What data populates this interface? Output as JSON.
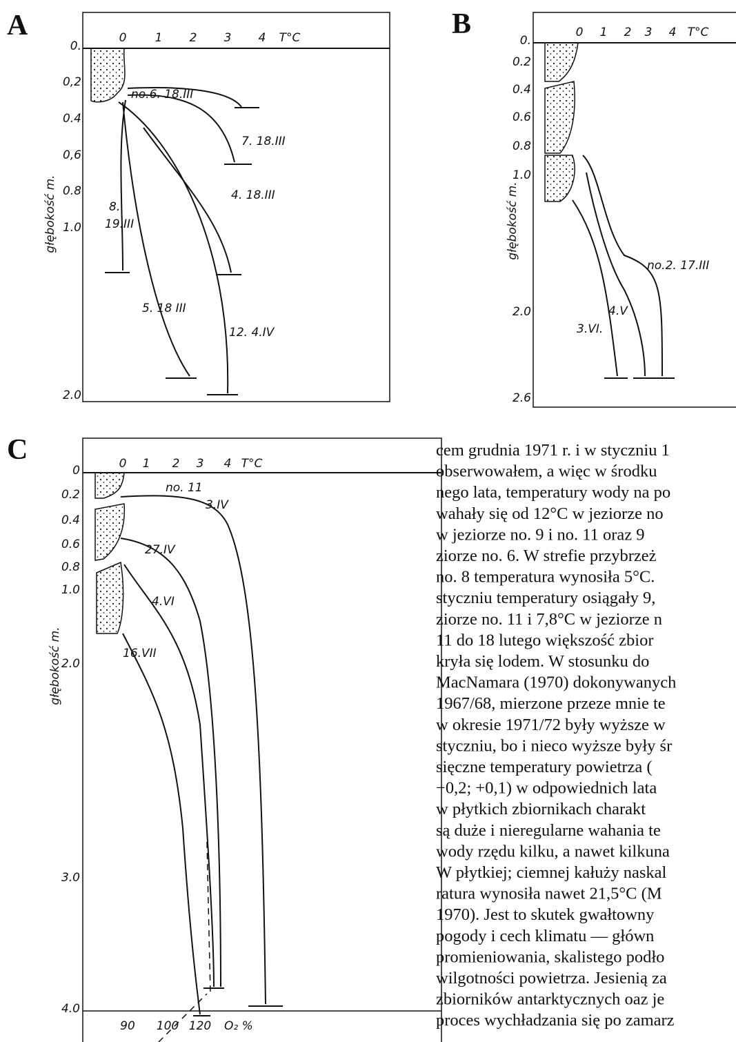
{
  "figures": [
    {
      "panel": "A",
      "x_ticks": [
        "0",
        "1",
        "2",
        "3",
        "4"
      ],
      "x_unit": "T°C",
      "y_ticks": [
        "0.",
        "0,2",
        "0.4",
        "0,6",
        "0.8",
        "1.0",
        "2.0"
      ],
      "y_label": "głębokość m.",
      "curve_labels": [
        "no.6. 18.III",
        "7. 18.III",
        "4. 18.III",
        "8.",
        "19.III",
        "5. 18 III",
        "12. 4.IV"
      ]
    },
    {
      "panel": "B",
      "x_ticks": [
        "0",
        "1",
        "2",
        "3",
        "4"
      ],
      "x_unit": "T°C",
      "y_ticks": [
        "0.",
        "0.2",
        "0.4",
        "0.6",
        "0.8",
        "1.0",
        "2.0",
        "2.6"
      ],
      "y_label": "głębokość m.",
      "curve_labels": [
        "no.2. 17.III",
        "4.V",
        "3.VI."
      ]
    },
    {
      "panel": "C",
      "x_ticks": [
        "0",
        "1",
        "2",
        "3",
        "4"
      ],
      "x_unit": "T°C",
      "y_ticks": [
        "0",
        "0.2",
        "0.4",
        "0.6",
        "0.8",
        "1.0",
        "2.0",
        "3.0",
        "4.0"
      ],
      "y_label": "głębokość m.",
      "curve_labels": [
        "no. 11",
        "3.IV",
        "27.IV",
        "4.VI",
        "16.VII"
      ],
      "bottom_ticks": [
        "90",
        "100",
        "120"
      ],
      "bottom_unit": "O₂ %"
    }
  ],
  "body_text": {
    "lines": [
      "cem grudnia 1971 r. i w styczniu 1",
      "obserwowałem, a więc w środku",
      "nego lata, temperatury wody na po",
      "wahały się od 12°C w jeziorze no",
      "w jeziorze no. 9 i no. 11 oraz 9",
      "ziorze no. 6. W strefie przybrzeż",
      "no. 8 temperatura wynosiła 5°C.",
      "styczniu temperatury osiągały 9,",
      "ziorze no. 11 i 7,8°C w jeziorze n",
      "11 do 18 lutego większość zbior",
      "kryła się lodem. W stosunku do",
      "MacNamara (1970) dokonywanych",
      "1967/68, mierzone przeze mnie te",
      "w okresie 1971/72 były wyższe w",
      "styczniu, bo i nieco wyższe były śr",
      "sięczne temperatury powietrza (",
      "−0,2; +0,1) w odpowiednich lata",
      "w płytkich zbiornikach charakt",
      "są duże i nieregularne wahania te",
      "wody rzędu kilku, a nawet kilkuna",
      "W płytkiej; ciemnej kałuży naskal",
      "ratura wynosiła nawet 21,5°C (M",
      "1970). Jest to skutek gwałtowny",
      "pogody i cech klimatu — główn",
      "promieniowania, skalistego podło",
      "wilgotności powietrza. Jesienią za",
      "zbiorników antarktycznych oaz je",
      "proces wychładzania się po zamarz"
    ]
  }
}
